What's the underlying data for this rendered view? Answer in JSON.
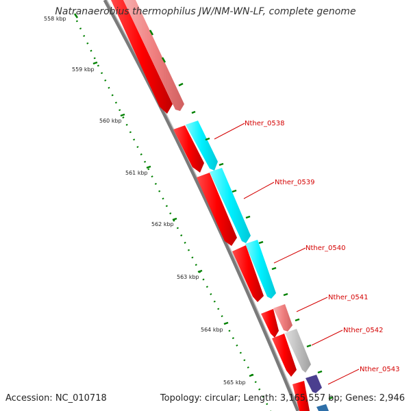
{
  "title": "Natranaerobius thermophilus JW/NM-WN-LF, complete genome",
  "footer": {
    "accession": "Accession: NC_010718",
    "summary": "Topology: circular; Length: 3,165,557 bp; Genes: 2,946"
  },
  "ticks": [
    "558 kbp",
    "559 kbp",
    "560 kbp",
    "561 kbp",
    "562 kbp",
    "563 kbp",
    "564 kbp",
    "565 kbp"
  ],
  "gene_labels": [
    "Nther_0538",
    "Nther_0539",
    "Nther_0540",
    "Nther_0541",
    "Nther_0542",
    "Nther_0543"
  ],
  "colors": {
    "cds_forward": "#ff0000",
    "cds_pale": "#f08080",
    "rna": "#00ffff",
    "other_gray": "#c0c0c0",
    "other_purple": "#4b3f8f",
    "backbone": "#808080",
    "tick_mark": "#008000",
    "label_text": "#d40000"
  }
}
